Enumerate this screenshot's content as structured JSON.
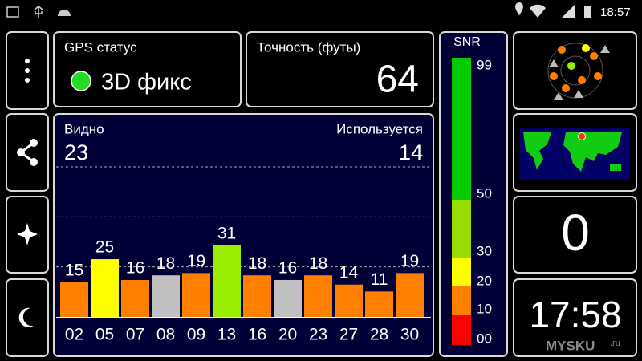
{
  "status_bar": {
    "time": "18:57"
  },
  "gps_status": {
    "label": "GPS статус",
    "value": "3D фикс"
  },
  "accuracy": {
    "label": "Точность (футы)",
    "value": "64"
  },
  "chart_data": {
    "type": "bar",
    "visible_label": "Видно",
    "visible": 23,
    "used_label": "Используется",
    "used": 14,
    "categories": [
      "02",
      "05",
      "07",
      "08",
      "09",
      "13",
      "16",
      "20",
      "23",
      "27",
      "28",
      "30"
    ],
    "values": [
      15,
      25,
      16,
      18,
      19,
      31,
      18,
      16,
      18,
      14,
      11,
      19
    ],
    "colors": [
      "#ff8000",
      "#ffff00",
      "#ff8000",
      "#c0c0c0",
      "#ff8000",
      "#99ee00",
      "#ff8000",
      "#c0c0c0",
      "#ff8000",
      "#ff8000",
      "#ff8000",
      "#ff8000"
    ],
    "ylim": [
      0,
      65
    ]
  },
  "snr_scale": {
    "title": "SNR",
    "ticks": [
      99,
      50,
      30,
      20,
      10,
      {
        "value": 0,
        "label": "00"
      }
    ],
    "colors": [
      "#00cc00",
      "#99dd00",
      "#ffff00",
      "#ff8000",
      "#ff0000"
    ]
  },
  "speed": "0",
  "clock": "17:58",
  "watermark": "MYSKU",
  "watermark_suffix": ".ru"
}
